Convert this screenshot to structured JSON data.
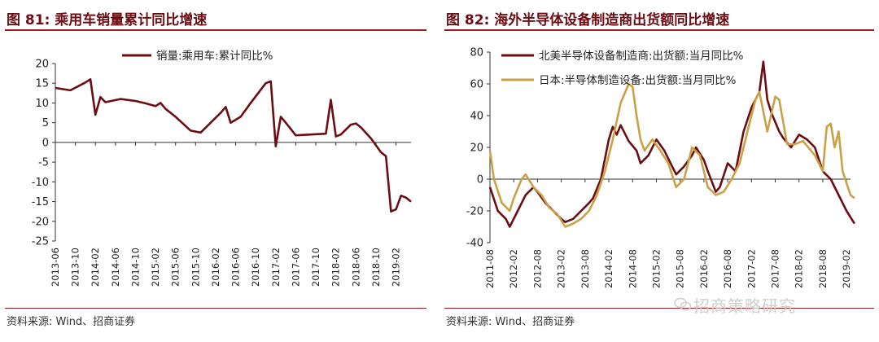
{
  "figures": [
    {
      "title": "图 81:  乘用车销量累计同比增速",
      "source": "资料来源:  Wind、招商证券"
    },
    {
      "title": "图 82:  海外半导体设备制造商出货额同比增速",
      "source": "资料来源:  Wind、招商证券"
    }
  ],
  "watermark": "招商策略研究",
  "chart_data": [
    {
      "type": "line",
      "ylim": [
        -25,
        20
      ],
      "yticks": [
        20,
        15,
        10,
        5,
        0,
        -5,
        -10,
        -15,
        -20,
        -25
      ],
      "x_range": [
        "2013-06",
        "2019-05"
      ],
      "x_tick_labels": [
        "2013-06",
        "2013-10",
        "2014-02",
        "2014-06",
        "2014-10",
        "2015-02",
        "2015-06",
        "2015-10",
        "2016-02",
        "2016-06",
        "2016-10",
        "2017-02",
        "2017-06",
        "2017-10",
        "2018-02",
        "2018-06",
        "2018-10",
        "2019-02"
      ],
      "legend_position": "top-center",
      "grid": false,
      "series": [
        {
          "name": "销量:乘用车:累计同比%",
          "color": "#6b0d12",
          "points": [
            [
              "2013-06",
              13.8
            ],
            [
              "2013-09",
              13.2
            ],
            [
              "2013-12",
              15.2
            ],
            [
              "2014-01",
              16
            ],
            [
              "2014-02",
              7
            ],
            [
              "2014-03",
              11.5
            ],
            [
              "2014-04",
              10.2
            ],
            [
              "2014-07",
              11
            ],
            [
              "2014-10",
              10.5
            ],
            [
              "2014-12",
              9.9
            ],
            [
              "2015-02",
              9.2
            ],
            [
              "2015-03",
              10
            ],
            [
              "2015-04",
              8.5
            ],
            [
              "2015-06",
              6.5
            ],
            [
              "2015-09",
              3
            ],
            [
              "2015-11",
              2.5
            ],
            [
              "2016-01",
              5
            ],
            [
              "2016-03",
              7.5
            ],
            [
              "2016-04",
              9
            ],
            [
              "2016-05",
              5
            ],
            [
              "2016-07",
              6.5
            ],
            [
              "2016-09",
              10
            ],
            [
              "2016-12",
              15
            ],
            [
              "2017-01",
              15.5
            ],
            [
              "2017-02",
              -1
            ],
            [
              "2017-03",
              6.5
            ],
            [
              "2017-04",
              5
            ],
            [
              "2017-06",
              1.8
            ],
            [
              "2017-09",
              2
            ],
            [
              "2017-12",
              2.2
            ],
            [
              "2018-01",
              10.8
            ],
            [
              "2018-02",
              1.5
            ],
            [
              "2018-03",
              2
            ],
            [
              "2018-05",
              4.5
            ],
            [
              "2018-06",
              4.8
            ],
            [
              "2018-07",
              3.8
            ],
            [
              "2018-09",
              1
            ],
            [
              "2018-11",
              -2.5
            ],
            [
              "2018-12",
              -3.5
            ],
            [
              "2019-01",
              -17.5
            ],
            [
              "2019-02",
              -17
            ],
            [
              "2019-03",
              -13.5
            ],
            [
              "2019-04",
              -14
            ],
            [
              "2019-05",
              -15
            ]
          ]
        }
      ]
    },
    {
      "type": "line",
      "ylim": [
        -40,
        80
      ],
      "yticks": [
        80,
        60,
        40,
        20,
        0,
        -20,
        -40
      ],
      "x_range": [
        "2011-08",
        "2019-03"
      ],
      "x_tick_labels": [
        "2011-08",
        "2012-02",
        "2012-08",
        "2013-02",
        "2013-08",
        "2014-02",
        "2014-08",
        "2015-02",
        "2015-08",
        "2016-02",
        "2016-08",
        "2017-02",
        "2017-08",
        "2018-02",
        "2018-08",
        "2019-02"
      ],
      "legend_position": "top-left",
      "grid": false,
      "series": [
        {
          "name": "北美半导体设备制造商:出货额:当月同比%",
          "color": "#6b0d12",
          "points": [
            [
              "2011-08",
              -5
            ],
            [
              "2011-10",
              -20
            ],
            [
              "2011-12",
              -25
            ],
            [
              "2012-01",
              -30
            ],
            [
              "2012-03",
              -20
            ],
            [
              "2012-05",
              -10
            ],
            [
              "2012-07",
              -5
            ],
            [
              "2012-08",
              -8
            ],
            [
              "2012-10",
              -15
            ],
            [
              "2012-12",
              -20
            ],
            [
              "2013-02",
              -25
            ],
            [
              "2013-03",
              -27
            ],
            [
              "2013-05",
              -25
            ],
            [
              "2013-07",
              -20
            ],
            [
              "2013-09",
              -15
            ],
            [
              "2013-10",
              -12
            ],
            [
              "2013-12",
              0
            ],
            [
              "2014-02",
              25
            ],
            [
              "2014-03",
              33
            ],
            [
              "2014-04",
              28
            ],
            [
              "2014-05",
              34
            ],
            [
              "2014-07",
              24
            ],
            [
              "2014-09",
              18
            ],
            [
              "2014-10",
              10
            ],
            [
              "2014-12",
              15
            ],
            [
              "2015-02",
              25
            ],
            [
              "2015-04",
              18
            ],
            [
              "2015-06",
              8
            ],
            [
              "2015-07",
              3
            ],
            [
              "2015-09",
              8
            ],
            [
              "2015-11",
              15
            ],
            [
              "2015-12",
              20
            ],
            [
              "2016-02",
              12
            ],
            [
              "2016-03",
              5
            ],
            [
              "2016-05",
              -8
            ],
            [
              "2016-06",
              -5
            ],
            [
              "2016-08",
              10
            ],
            [
              "2016-10",
              5
            ],
            [
              "2016-12",
              30
            ],
            [
              "2017-02",
              45
            ],
            [
              "2017-04",
              55
            ],
            [
              "2017-05",
              74
            ],
            [
              "2017-06",
              50
            ],
            [
              "2017-07",
              42
            ],
            [
              "2017-09",
              30
            ],
            [
              "2017-10",
              26
            ],
            [
              "2017-12",
              20
            ],
            [
              "2018-02",
              28
            ],
            [
              "2018-04",
              25
            ],
            [
              "2018-06",
              20
            ],
            [
              "2018-08",
              5
            ],
            [
              "2018-10",
              0
            ],
            [
              "2018-12",
              -10
            ],
            [
              "2019-02",
              -20
            ],
            [
              "2019-03",
              -24
            ],
            [
              "2019-04",
              -28
            ]
          ]
        },
        {
          "name": "日本:半导体制造设备:出货额:当月同比%",
          "color": "#c9a247",
          "points": [
            [
              "2011-08",
              18
            ],
            [
              "2011-09",
              0
            ],
            [
              "2011-11",
              -15
            ],
            [
              "2012-01",
              -20
            ],
            [
              "2012-02",
              -12
            ],
            [
              "2012-04",
              0
            ],
            [
              "2012-05",
              3
            ],
            [
              "2012-07",
              -5
            ],
            [
              "2012-09",
              -10
            ],
            [
              "2012-11",
              -18
            ],
            [
              "2013-01",
              -22
            ],
            [
              "2013-03",
              -30
            ],
            [
              "2013-05",
              -28
            ],
            [
              "2013-07",
              -25
            ],
            [
              "2013-09",
              -20
            ],
            [
              "2013-11",
              -10
            ],
            [
              "2014-01",
              5
            ],
            [
              "2014-03",
              25
            ],
            [
              "2014-05",
              48
            ],
            [
              "2014-07",
              60
            ],
            [
              "2014-08",
              58
            ],
            [
              "2014-09",
              40
            ],
            [
              "2014-10",
              25
            ],
            [
              "2014-11",
              18
            ],
            [
              "2015-01",
              25
            ],
            [
              "2015-03",
              18
            ],
            [
              "2015-05",
              10
            ],
            [
              "2015-07",
              -5
            ],
            [
              "2015-09",
              0
            ],
            [
              "2015-11",
              20
            ],
            [
              "2016-01",
              15
            ],
            [
              "2016-03",
              -5
            ],
            [
              "2016-05",
              -10
            ],
            [
              "2016-07",
              -8
            ],
            [
              "2016-09",
              0
            ],
            [
              "2016-11",
              10
            ],
            [
              "2017-01",
              30
            ],
            [
              "2017-03",
              50
            ],
            [
              "2017-04",
              55
            ],
            [
              "2017-06",
              30
            ],
            [
              "2017-08",
              52
            ],
            [
              "2017-09",
              50
            ],
            [
              "2017-11",
              22
            ],
            [
              "2018-01",
              22
            ],
            [
              "2018-03",
              24
            ],
            [
              "2018-05",
              18
            ],
            [
              "2018-06",
              15
            ],
            [
              "2018-08",
              5
            ],
            [
              "2018-09",
              33
            ],
            [
              "2018-10",
              35
            ],
            [
              "2018-11",
              20
            ],
            [
              "2018-12",
              30
            ],
            [
              "2019-01",
              5
            ],
            [
              "2019-03",
              -10
            ],
            [
              "2019-04",
              -12
            ]
          ]
        }
      ]
    }
  ]
}
